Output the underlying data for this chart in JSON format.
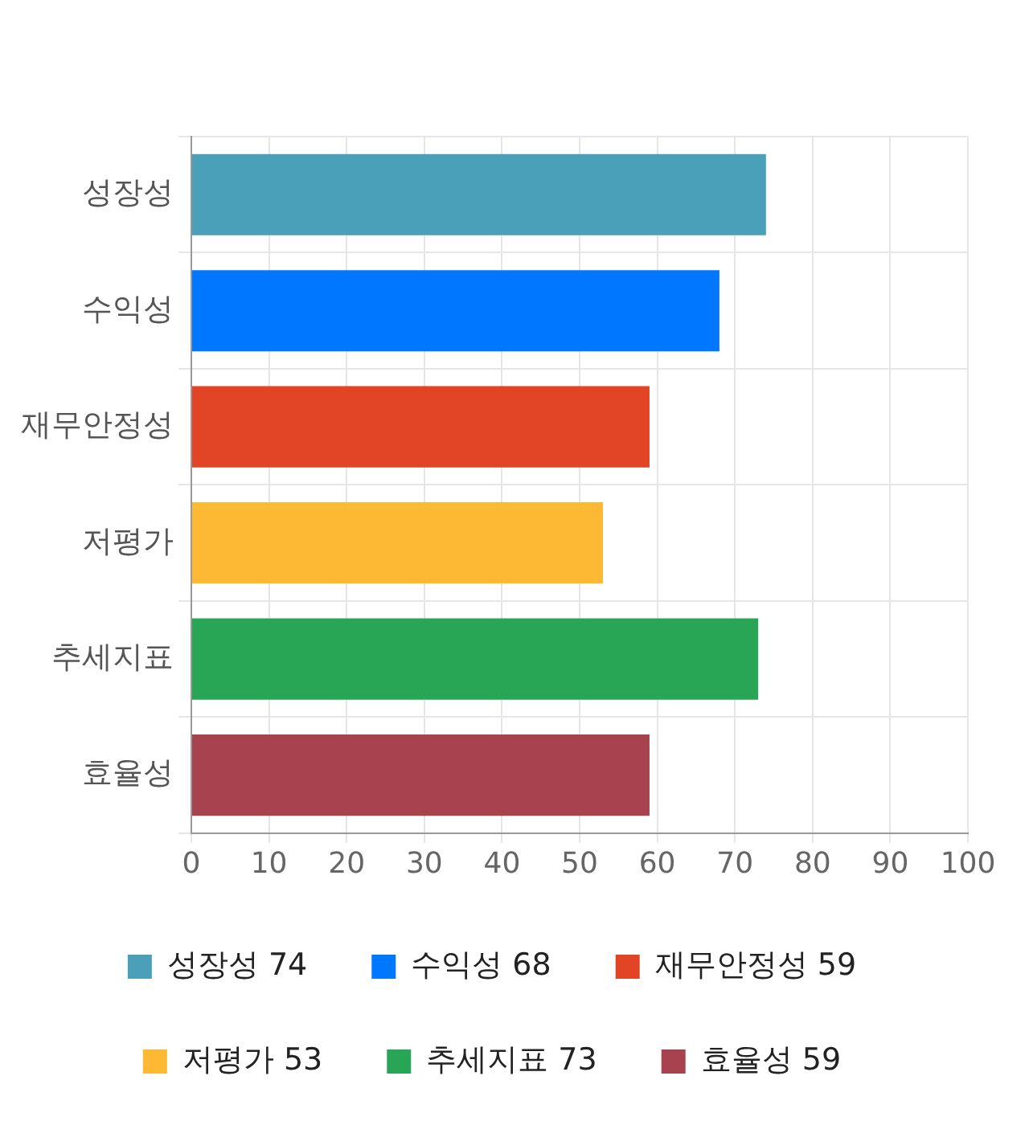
{
  "chart_data": {
    "type": "bar",
    "orientation": "horizontal",
    "stacked": true,
    "categories": [
      "성장성",
      "수익성",
      "재무안정성",
      "저평가",
      "추세지표",
      "효율성"
    ],
    "series": [
      {
        "name": "성장성 74",
        "color": "#4aa0b9",
        "values": [
          74,
          null,
          null,
          null,
          null,
          null
        ]
      },
      {
        "name": "수익성 68",
        "color": "#0077ff",
        "values": [
          null,
          68,
          null,
          null,
          null,
          null
        ]
      },
      {
        "name": "재무안정성 59",
        "color": "#e24526",
        "values": [
          null,
          null,
          59,
          null,
          null,
          null
        ]
      },
      {
        "name": "저평가 53",
        "color": "#fdb933",
        "values": [
          null,
          null,
          null,
          53,
          null,
          null
        ]
      },
      {
        "name": "추세지표 73",
        "color": "#29a655",
        "values": [
          null,
          null,
          null,
          null,
          73,
          null
        ]
      },
      {
        "name": "효율성 59",
        "color": "#a6434f",
        "values": [
          null,
          null,
          null,
          null,
          null,
          59
        ]
      }
    ],
    "xlim": [
      0,
      100
    ],
    "xticks": [
      0,
      10,
      20,
      30,
      40,
      50,
      60,
      70,
      80,
      90,
      100
    ],
    "grid": true,
    "legend": "bottom"
  }
}
